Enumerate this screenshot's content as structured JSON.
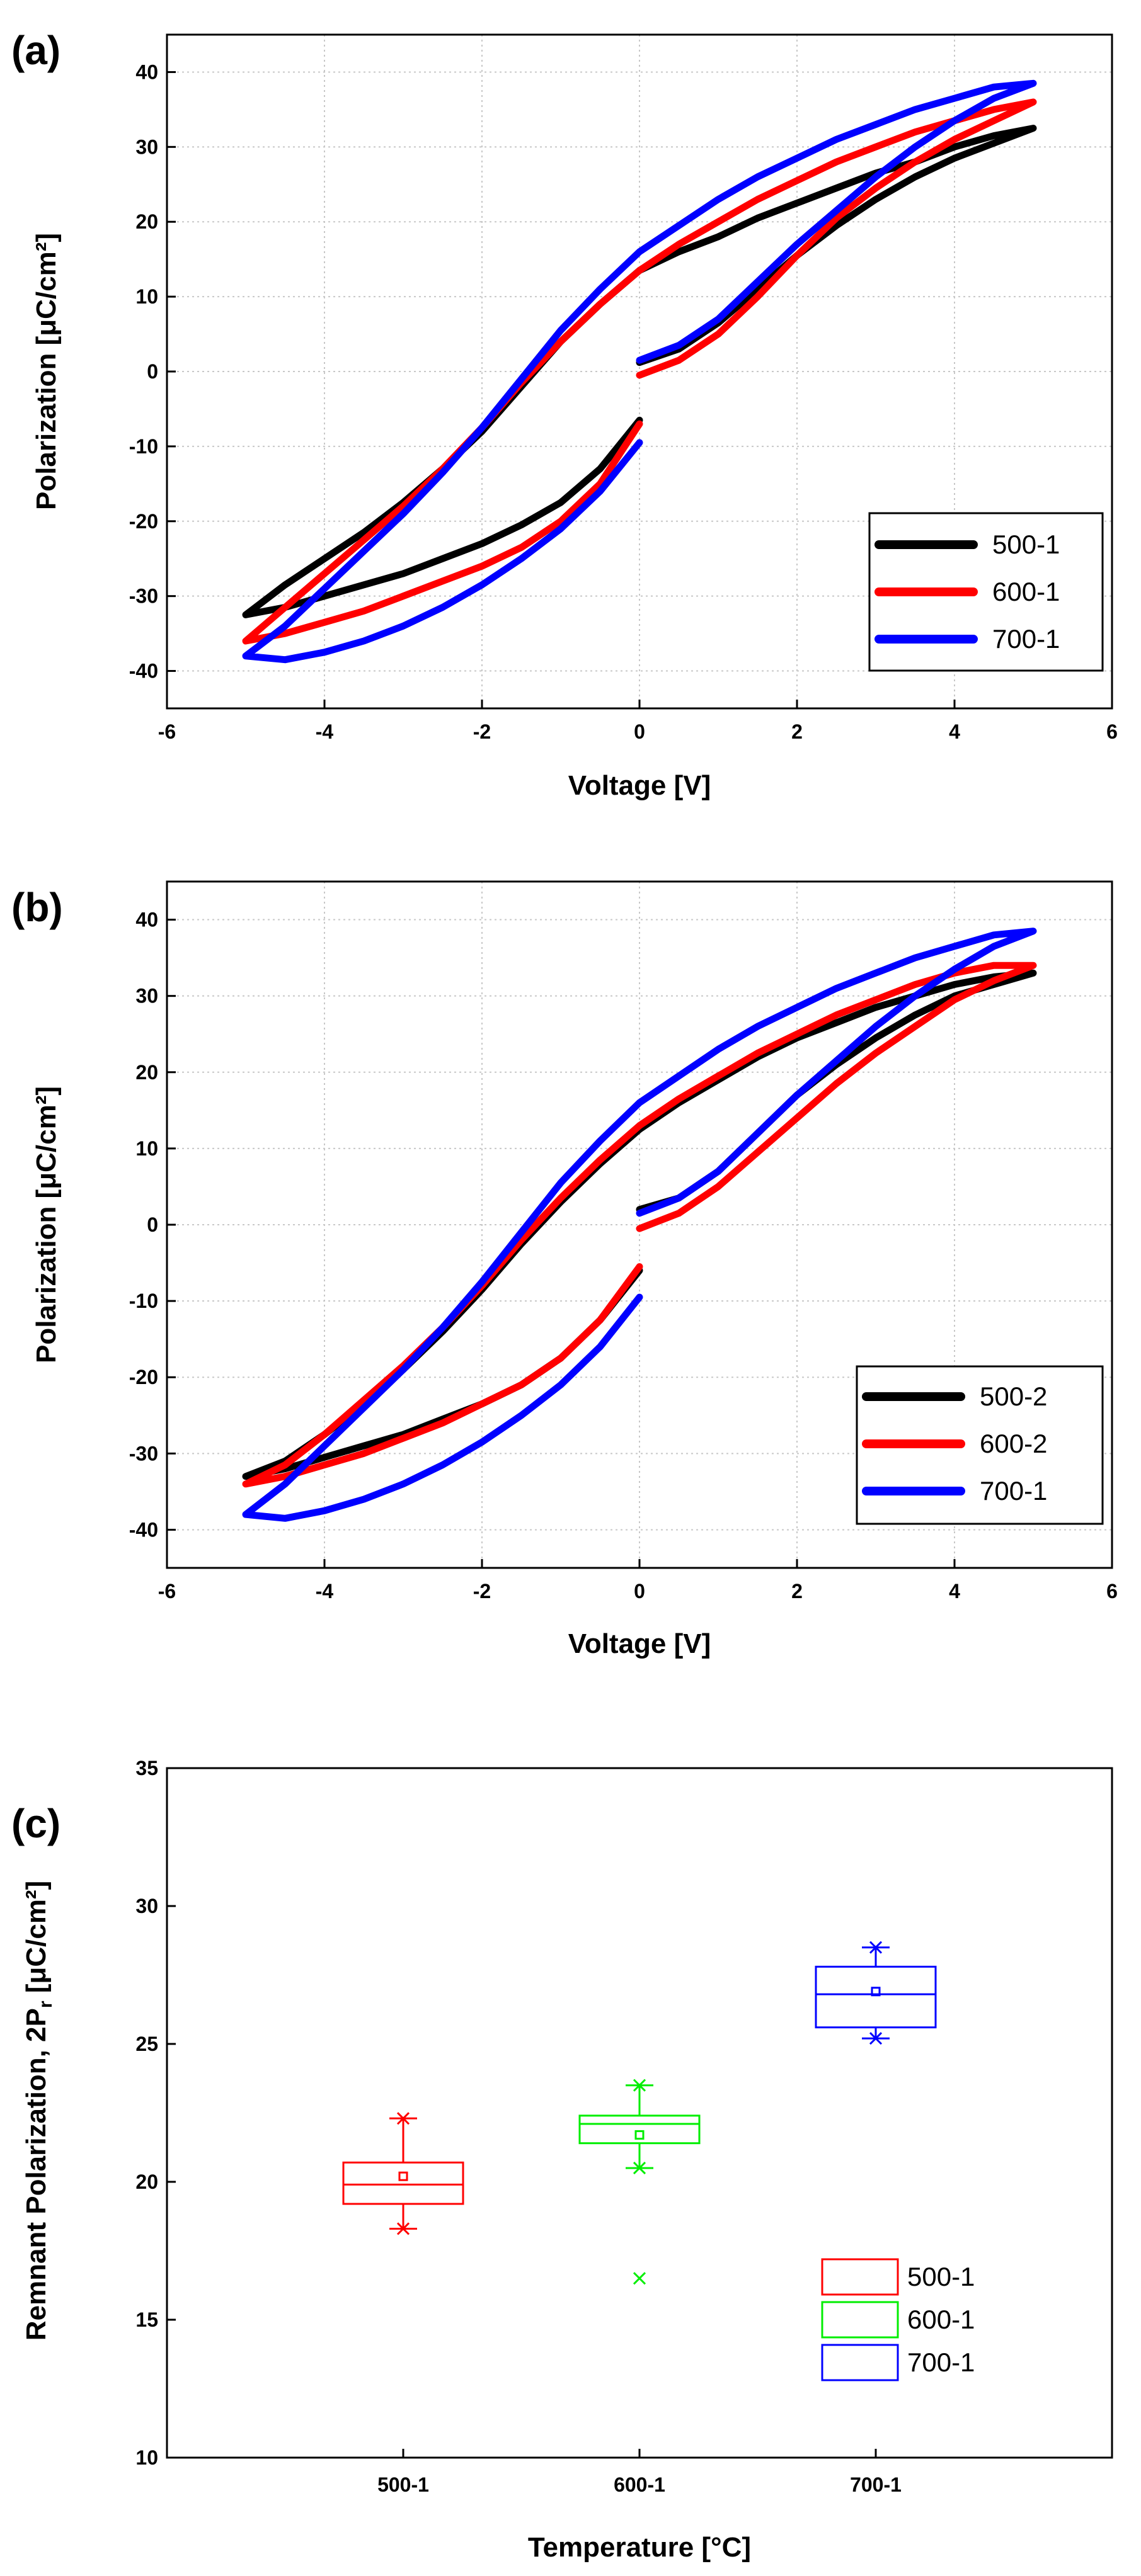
{
  "chart_data": [
    {
      "type": "line",
      "panel_label": "(a)",
      "title": "",
      "xlabel": "Voltage [V]",
      "ylabel": "Polarization [μC/cm²]",
      "xlim": [
        -6,
        6
      ],
      "ylim": [
        -45,
        45
      ],
      "xticks": [
        "-6",
        "-4",
        "-2",
        "0",
        "2",
        "4",
        "6"
      ],
      "yticks": [
        "-40",
        "-30",
        "-20",
        "-10",
        "0",
        "10",
        "20",
        "30",
        "40"
      ],
      "grid": true,
      "legend_position": "bottom-right",
      "series": [
        {
          "name": "500-1",
          "color": "#000000",
          "x": [
            0,
            0.5,
            1,
            1.5,
            2,
            2.5,
            3,
            3.5,
            4,
            4.5,
            5,
            4.5,
            4,
            3.5,
            3,
            2.5,
            2,
            1.5,
            1,
            0.5,
            0,
            -0.5,
            -1,
            -1.5,
            -2,
            -2.5,
            -3,
            -3.5,
            -4,
            -4.5,
            -5,
            -4.5,
            -4,
            -3.5,
            -3,
            -2.5,
            -2,
            -1.5,
            -1,
            -0.5,
            0
          ],
          "y": [
            1.2,
            3,
            6.5,
            11,
            15.5,
            19.5,
            23,
            26,
            28.5,
            30.5,
            32.5,
            31.5,
            30,
            28,
            26.5,
            24.5,
            22.5,
            20.5,
            18,
            16,
            13.5,
            9,
            4,
            -2,
            -8,
            -13,
            -17.5,
            -21.5,
            -25,
            -28.5,
            -32.5,
            -31.5,
            -30,
            -28.5,
            -27,
            -25,
            -23,
            -20.5,
            -17.5,
            -13,
            -6.5
          ]
        },
        {
          "name": "600-1",
          "color": "#ff0000",
          "x": [
            0,
            0.5,
            1,
            1.5,
            2,
            2.5,
            3,
            3.5,
            4,
            4.5,
            5,
            4.5,
            4,
            3.5,
            3,
            2.5,
            2,
            1.5,
            1,
            0.5,
            0,
            -0.5,
            -1,
            -1.5,
            -2,
            -2.5,
            -3,
            -3.5,
            -4,
            -4.5,
            -5,
            -4.5,
            -4,
            -3.5,
            -3,
            -2.5,
            -2,
            -1.5,
            -1,
            -0.5,
            0
          ],
          "y": [
            -0.5,
            1.5,
            5,
            10,
            15.5,
            20.5,
            24.5,
            28,
            31,
            33.5,
            36,
            35,
            33.5,
            32,
            30,
            28,
            25.5,
            23,
            20,
            17,
            13.5,
            9,
            4,
            -1.5,
            -7.5,
            -13,
            -18,
            -22.5,
            -27,
            -31.5,
            -36,
            -35,
            -33.5,
            -32,
            -30,
            -28,
            -26,
            -23.5,
            -20,
            -15,
            -7
          ]
        },
        {
          "name": "700-1",
          "color": "#0000ff",
          "x": [
            0,
            0.5,
            1,
            1.5,
            2,
            2.5,
            3,
            3.5,
            4,
            4.5,
            5,
            4.5,
            4,
            3.5,
            3,
            2.5,
            2,
            1.5,
            1,
            0.5,
            0,
            -0.5,
            -1,
            -1.5,
            -2,
            -2.5,
            -3,
            -3.5,
            -4,
            -4.5,
            -5,
            -4.5,
            -4,
            -3.5,
            -3,
            -2.5,
            -2,
            -1.5,
            -1,
            -0.5,
            0
          ],
          "y": [
            1.5,
            3.5,
            7,
            12,
            17,
            21.5,
            26,
            30,
            33.5,
            36.5,
            38.5,
            38,
            36.5,
            35,
            33,
            31,
            28.5,
            26,
            23,
            19.5,
            16,
            11,
            5.5,
            -1,
            -7.5,
            -13.5,
            -19,
            -24,
            -29,
            -34,
            -38,
            -38.5,
            -37.5,
            -36,
            -34,
            -31.5,
            -28.5,
            -25,
            -21,
            -16,
            -9.5
          ]
        }
      ]
    },
    {
      "type": "line",
      "panel_label": "(b)",
      "title": "",
      "xlabel": "Voltage [V]",
      "ylabel": "Polarization [μC/cm²]",
      "xlim": [
        -6,
        6
      ],
      "ylim": [
        -45,
        45
      ],
      "xticks": [
        "-6",
        "-4",
        "-2",
        "0",
        "2",
        "4",
        "6"
      ],
      "yticks": [
        "-40",
        "-30",
        "-20",
        "-10",
        "0",
        "10",
        "20",
        "30",
        "40"
      ],
      "grid": true,
      "legend_position": "bottom-right",
      "series": [
        {
          "name": "500-2",
          "color": "#000000",
          "x": [
            0,
            0.5,
            1,
            1.5,
            2,
            2.5,
            3,
            3.5,
            4,
            4.5,
            5,
            4.5,
            4,
            3.5,
            3,
            2.5,
            2,
            1.5,
            1,
            0.5,
            0,
            -0.5,
            -1,
            -1.5,
            -2,
            -2.5,
            -3,
            -3.5,
            -4,
            -4.5,
            -5,
            -4.5,
            -4,
            -3.5,
            -3,
            -2.5,
            -2,
            -1.5,
            -1,
            -0.5,
            0
          ],
          "y": [
            2,
            3.5,
            7,
            12,
            17,
            21,
            24.5,
            27.5,
            30,
            31.5,
            33,
            32.5,
            31.5,
            30,
            28.5,
            26.5,
            24.5,
            22,
            19,
            16,
            12.5,
            8,
            3,
            -2.5,
            -8.5,
            -14,
            -19,
            -23.5,
            -27.5,
            -31,
            -33,
            -32,
            -30.5,
            -29,
            -27.5,
            -25.5,
            -23.5,
            -21,
            -17.5,
            -12.5,
            -6
          ]
        },
        {
          "name": "600-2",
          "color": "#ff0000",
          "x": [
            0,
            0.5,
            1,
            1.5,
            2,
            2.5,
            3,
            3.5,
            4,
            4.5,
            5,
            4.5,
            4,
            3.5,
            3,
            2.5,
            2,
            1.5,
            1,
            0.5,
            0,
            -0.5,
            -1,
            -1.5,
            -2,
            -2.5,
            -3,
            -3.5,
            -4,
            -4.5,
            -5,
            -4.5,
            -4,
            -3.5,
            -3,
            -2.5,
            -2,
            -1.5,
            -1,
            -0.5,
            0
          ],
          "y": [
            -0.5,
            1.5,
            5,
            9.5,
            14,
            18.5,
            22.5,
            26,
            29.5,
            32,
            34,
            34,
            33,
            31.5,
            29.5,
            27.5,
            25,
            22.5,
            19.5,
            16.5,
            13,
            8.5,
            3.5,
            -2,
            -8,
            -13.5,
            -18.5,
            -23,
            -27.5,
            -31.5,
            -34,
            -33,
            -31.5,
            -30,
            -28,
            -26,
            -23.5,
            -21,
            -17.5,
            -12.5,
            -5.5
          ]
        },
        {
          "name": "700-1",
          "color": "#0000ff",
          "x": [
            0,
            0.5,
            1,
            1.5,
            2,
            2.5,
            3,
            3.5,
            4,
            4.5,
            5,
            4.5,
            4,
            3.5,
            3,
            2.5,
            2,
            1.5,
            1,
            0.5,
            0,
            -0.5,
            -1,
            -1.5,
            -2,
            -2.5,
            -3,
            -3.5,
            -4,
            -4.5,
            -5,
            -4.5,
            -4,
            -3.5,
            -3,
            -2.5,
            -2,
            -1.5,
            -1,
            -0.5,
            0
          ],
          "y": [
            1.5,
            3.5,
            7,
            12,
            17,
            21.5,
            26,
            30,
            33.5,
            36.5,
            38.5,
            38,
            36.5,
            35,
            33,
            31,
            28.5,
            26,
            23,
            19.5,
            16,
            11,
            5.5,
            -1,
            -7.5,
            -13.5,
            -19,
            -24,
            -29,
            -34,
            -38,
            -38.5,
            -37.5,
            -36,
            -34,
            -31.5,
            -28.5,
            -25,
            -21,
            -16,
            -9.5
          ]
        }
      ]
    },
    {
      "type": "box",
      "panel_label": "(c)",
      "title": "",
      "xlabel": "Temperature [°C]",
      "ylabel": "Remnant Polarization, 2P",
      "ylabel_subscript": "r",
      "ylabel_unit": " [μC/cm²]",
      "ylim": [
        10,
        35
      ],
      "yticks": [
        "10",
        "15",
        "20",
        "25",
        "30",
        "35"
      ],
      "categories": [
        "500-1",
        "600-1",
        "700-1"
      ],
      "grid": false,
      "legend_position": "bottom-right",
      "series": [
        {
          "name": "500-1",
          "color": "#ff0000",
          "q1": 19.2,
          "median": 19.9,
          "mean": 20.2,
          "q3": 20.7,
          "whisker_low": 18.3,
          "whisker_high": 22.3,
          "outliers": []
        },
        {
          "name": "600-1",
          "color": "#00ee00",
          "q1": 21.4,
          "median": 22.1,
          "mean": 21.7,
          "q3": 22.4,
          "whisker_low": 20.5,
          "whisker_high": 23.5,
          "outliers": [
            16.5
          ]
        },
        {
          "name": "700-1",
          "color": "#0000ff",
          "q1": 25.6,
          "median": 26.8,
          "mean": 26.9,
          "q3": 27.8,
          "whisker_low": 25.2,
          "whisker_high": 28.5,
          "outliers": []
        }
      ]
    }
  ]
}
